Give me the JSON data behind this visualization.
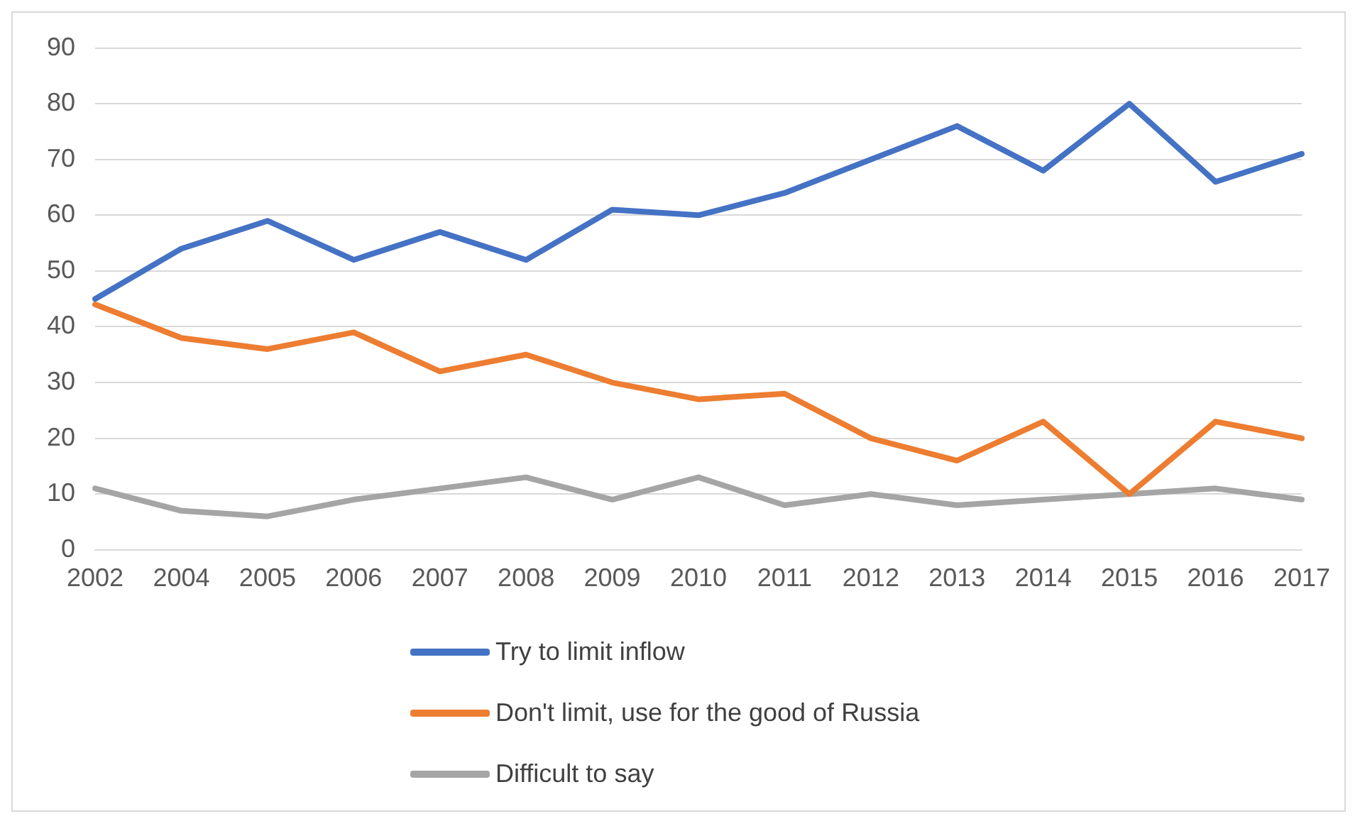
{
  "chart_data": {
    "type": "line",
    "categories": [
      "2002",
      "2004",
      "2005",
      "2006",
      "2007",
      "2008",
      "2009",
      "2010",
      "2011",
      "2012",
      "2013",
      "2014",
      "2015",
      "2016",
      "2017"
    ],
    "series": [
      {
        "name": "Try to limit inflow",
        "color": "#4472c4",
        "values": [
          45,
          54,
          59,
          52,
          57,
          52,
          61,
          60,
          64,
          70,
          76,
          68,
          80,
          66,
          71
        ]
      },
      {
        "name": "Don't limit, use for the good of Russia",
        "color": "#ed7d31",
        "values": [
          44,
          38,
          36,
          39,
          32,
          35,
          30,
          27,
          28,
          20,
          16,
          23,
          10,
          23,
          20
        ]
      },
      {
        "name": "Difficult to say",
        "color": "#a5a5a5",
        "values": [
          11,
          7,
          6,
          9,
          11,
          13,
          9,
          13,
          8,
          10,
          8,
          9,
          10,
          11,
          9
        ]
      }
    ],
    "ylim": [
      0,
      90
    ],
    "yticks": [
      0,
      10,
      20,
      30,
      40,
      50,
      60,
      70,
      80,
      90
    ],
    "grid": "y",
    "legend": "bottom",
    "marker": "none",
    "line_style": "solid"
  }
}
